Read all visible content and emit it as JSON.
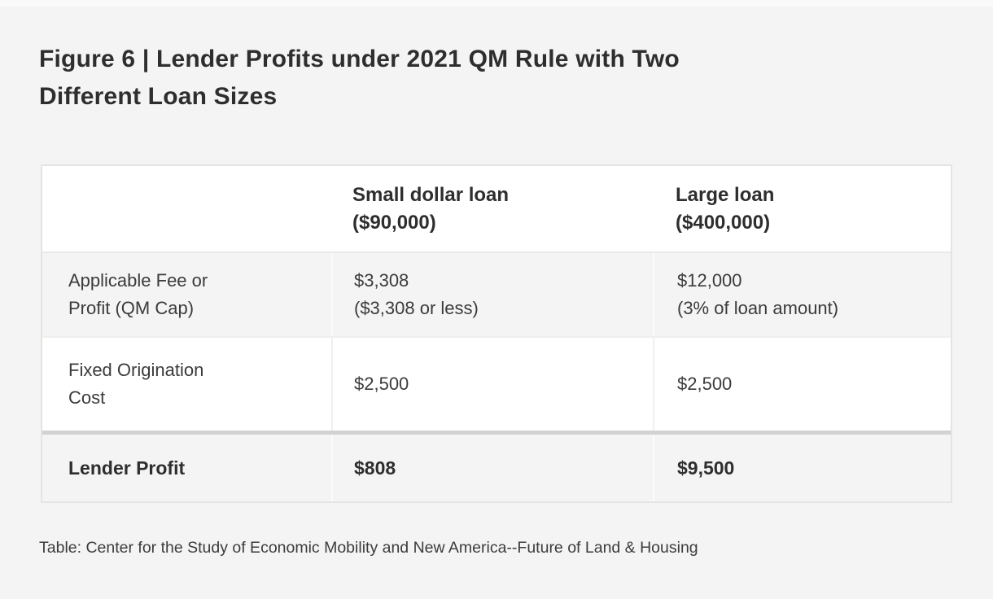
{
  "figure": {
    "title": {
      "line1": "Figure 6 | Lender Profits under 2021 QM Rule with Two",
      "line2": "Different Loan Sizes"
    },
    "caption": "Table: Center for the Study of Economic Mobility and New America--Future of Land & Housing"
  },
  "table": {
    "header": {
      "col1": "",
      "col2": {
        "line1": "Small dollar loan",
        "line2": "($90,000)"
      },
      "col3": {
        "line1": "Large loan",
        "line2": "($400,000)"
      }
    },
    "rows": [
      {
        "label": {
          "line1": "Applicable Fee or",
          "line2": "Profit (QM Cap)"
        },
        "small": {
          "value": "$3,308",
          "note": "($3,308 or less)"
        },
        "large": {
          "value": "$12,000",
          "note": "(3% of loan amount)"
        }
      },
      {
        "label": {
          "line1": "Fixed Origination",
          "line2": "Cost"
        },
        "small": {
          "value": "$2,500"
        },
        "large": {
          "value": "$2,500"
        }
      },
      {
        "label": {
          "line1": "Lender Profit"
        },
        "small": {
          "value": "$808"
        },
        "large": {
          "value": "$9,500"
        }
      }
    ]
  },
  "colors": {
    "page_background": "#f4f4f4",
    "row_white": "#ffffff",
    "row_gray": "#f4f4f4",
    "total_row_divider": "#d2d2d2",
    "table_border": "#e4e4e2",
    "text": "#333333"
  },
  "chart_data": {
    "type": "table",
    "title": "Figure 6 | Lender Profits under 2021 QM Rule with Two Different Loan Sizes",
    "columns": [
      "",
      "Small dollar loan ($90,000)",
      "Large loan ($400,000)"
    ],
    "rows": [
      [
        "Applicable Fee or Profit (QM Cap)",
        "$3,308 ($3,308 or less)",
        "$12,000 (3% of loan amount)"
      ],
      [
        "Fixed Origination Cost",
        "$2,500",
        "$2,500"
      ],
      [
        "Lender Profit",
        "$808",
        "$9,500"
      ]
    ],
    "source_note": "Table: Center for the Study of Economic Mobility and New America--Future of Land & Housing",
    "layout": {
      "bold_rows": [
        "Lender Profit"
      ],
      "striped": true,
      "legend_position": "none",
      "grid": false
    }
  }
}
